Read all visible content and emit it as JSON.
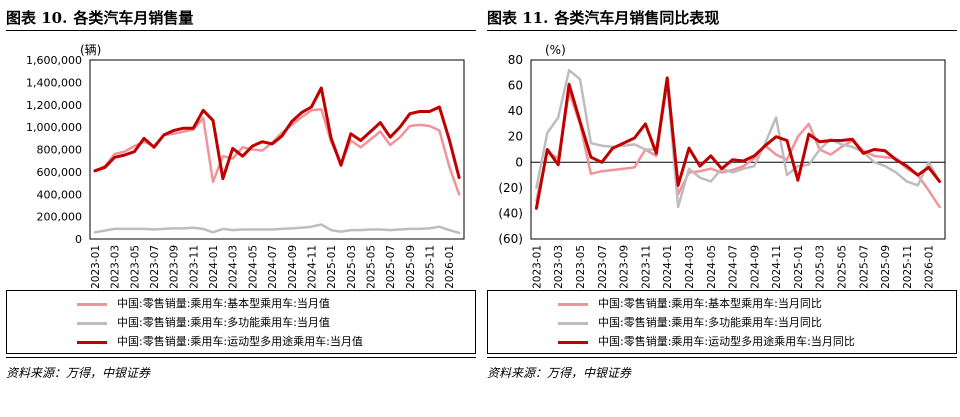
{
  "source": "资料来源：万得，中银证券",
  "chart_data": [
    {
      "type": "line",
      "figure_label": "图表 10.",
      "title": "各类汽车月销售量",
      "unit_label": "(辆)",
      "x": [
        "2023-01",
        "2023-02",
        "2023-03",
        "2023-04",
        "2023-05",
        "2023-06",
        "2023-07",
        "2023-08",
        "2023-09",
        "2023-10",
        "2023-11",
        "2023-12",
        "2024-01",
        "2024-02",
        "2024-03",
        "2024-04",
        "2024-05",
        "2024-06",
        "2024-07",
        "2024-08",
        "2024-09",
        "2024-10",
        "2024-11",
        "2024-12",
        "2025-01",
        "2025-02",
        "2025-03",
        "2025-04",
        "2025-05",
        "2025-06",
        "2025-07",
        "2025-08",
        "2025-09",
        "2025-10",
        "2025-11",
        "2025-12",
        "2026-01",
        "2026-02"
      ],
      "xticks": [
        "2023-01",
        "2023-03",
        "2023-05",
        "2023-07",
        "2023-09",
        "2023-11",
        "2024-01",
        "2024-03",
        "2024-05",
        "2024-07",
        "2024-09",
        "2024-11",
        "2025-01",
        "2025-03",
        "2025-05",
        "2025-07",
        "2025-09",
        "2025-11",
        "2026-01"
      ],
      "ylim": [
        0,
        1600000
      ],
      "yticks": [
        0,
        200000,
        400000,
        600000,
        800000,
        1000000,
        1200000,
        1400000,
        1600000
      ],
      "ytick_labels": [
        "0",
        "200,000",
        "400,000",
        "600,000",
        "800,000",
        "1,000,000",
        "1,200,000",
        "1,400,000",
        "1,600,000"
      ],
      "series": [
        {
          "name": "中国:零售销量:乘用车:基本型乘用车:当月值",
          "color": "#f0939a",
          "width": 2.5,
          "values": [
            610000,
            650000,
            760000,
            780000,
            830000,
            870000,
            830000,
            930000,
            940000,
            960000,
            980000,
            1080000,
            510000,
            740000,
            720000,
            820000,
            800000,
            790000,
            860000,
            950000,
            1020000,
            1090000,
            1150000,
            1160000,
            870000,
            680000,
            880000,
            820000,
            890000,
            960000,
            840000,
            910000,
            1010000,
            1020000,
            1010000,
            970000,
            650000,
            400000
          ]
        },
        {
          "name": "中国:零售销量:乘用车:多功能乘用车:当月值",
          "color": "#bdbdbd",
          "width": 2.5,
          "values": [
            60000,
            75000,
            90000,
            90000,
            90000,
            90000,
            85000,
            90000,
            95000,
            95000,
            100000,
            90000,
            60000,
            90000,
            80000,
            85000,
            85000,
            85000,
            85000,
            90000,
            95000,
            100000,
            110000,
            130000,
            80000,
            65000,
            80000,
            80000,
            85000,
            85000,
            80000,
            85000,
            90000,
            90000,
            95000,
            110000,
            80000,
            55000
          ]
        },
        {
          "name": "中国:零售销量:乘用车:运动型多用途乘用车:当月值",
          "color": "#c00000",
          "width": 3,
          "values": [
            610000,
            640000,
            730000,
            750000,
            780000,
            900000,
            820000,
            930000,
            970000,
            990000,
            990000,
            1150000,
            1060000,
            540000,
            810000,
            740000,
            830000,
            870000,
            850000,
            920000,
            1050000,
            1130000,
            1180000,
            1350000,
            900000,
            660000,
            940000,
            880000,
            960000,
            1040000,
            910000,
            1000000,
            1120000,
            1140000,
            1140000,
            1180000,
            890000,
            550000
          ]
        }
      ]
    },
    {
      "type": "line",
      "figure_label": "图表 11.",
      "title": "各类汽车月销售同比表现",
      "unit_label": "(%)",
      "x": [
        "2023-01",
        "2023-02",
        "2023-03",
        "2023-04",
        "2023-05",
        "2023-06",
        "2023-07",
        "2023-08",
        "2023-09",
        "2023-10",
        "2023-11",
        "2023-12",
        "2024-01",
        "2024-02",
        "2024-03",
        "2024-04",
        "2024-05",
        "2024-06",
        "2024-07",
        "2024-08",
        "2024-09",
        "2024-10",
        "2024-11",
        "2024-12",
        "2025-01",
        "2025-02",
        "2025-03",
        "2025-04",
        "2025-05",
        "2025-06",
        "2025-07",
        "2025-08",
        "2025-09",
        "2025-10",
        "2025-11",
        "2025-12",
        "2026-01",
        "2026-02"
      ],
      "xticks": [
        "2023-01",
        "2023-03",
        "2023-05",
        "2023-07",
        "2023-09",
        "2023-11",
        "2024-01",
        "2024-03",
        "2024-05",
        "2024-07",
        "2024-09",
        "2024-11",
        "2025-01",
        "2025-03",
        "2025-05",
        "2025-07",
        "2025-09",
        "2025-11",
        "2026-01"
      ],
      "ylim": [
        -60,
        80
      ],
      "yticks": [
        -60,
        -40,
        -20,
        0,
        20,
        40,
        60,
        80
      ],
      "ytick_labels": [
        "(60)",
        "(40)",
        "(20)",
        "0",
        "20",
        "40",
        "60",
        "80"
      ],
      "series": [
        {
          "name": "中国:零售销量:乘用车:基本型乘用车:当月同比",
          "color": "#f0939a",
          "width": 2.5,
          "values": [
            -30,
            8,
            3,
            55,
            30,
            -9,
            -7,
            -6,
            -5,
            -4,
            10,
            5,
            62,
            -25,
            -8,
            -7,
            -5,
            -8,
            -6,
            -3,
            3,
            13,
            6,
            2,
            20,
            30,
            10,
            6,
            12,
            17,
            9,
            5,
            4,
            3,
            -5,
            -10,
            -22,
            -35
          ]
        },
        {
          "name": "中国:零售销量:乘用车:多功能乘用车:当月同比",
          "color": "#bdbdbd",
          "width": 2.5,
          "values": [
            -20,
            23,
            35,
            72,
            65,
            15,
            13,
            12,
            13,
            14,
            10,
            10,
            63,
            -35,
            -5,
            -12,
            -15,
            -5,
            -8,
            -5,
            -3,
            15,
            35,
            -10,
            -3,
            -2,
            10,
            18,
            14,
            12,
            8,
            0,
            -3,
            -8,
            -15,
            -18,
            0,
            -15
          ]
        },
        {
          "name": "中国:零售销量:乘用车:运动型多用途乘用车:当月同比",
          "color": "#c00000",
          "width": 3,
          "values": [
            -36,
            10,
            -2,
            61,
            32,
            4,
            0,
            11,
            15,
            19,
            30,
            7,
            66,
            -18,
            11,
            -3,
            5,
            -5,
            2,
            1,
            5,
            13,
            20,
            17,
            -14,
            22,
            16,
            17,
            17,
            18,
            7,
            10,
            9,
            2,
            -3,
            -10,
            -4,
            -15
          ]
        }
      ]
    }
  ]
}
